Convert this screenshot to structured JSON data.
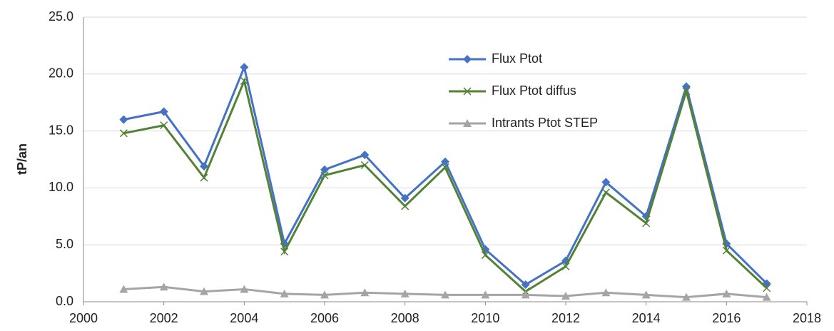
{
  "chart_data": {
    "type": "line",
    "y_label": "tP/an",
    "x": [
      2001,
      2002,
      2003,
      2004,
      2005,
      2006,
      2007,
      2008,
      2009,
      2010,
      2011,
      2012,
      2013,
      2014,
      2015,
      2016,
      2017
    ],
    "series": [
      {
        "name": "Flux Ptot",
        "color": "#4472c4",
        "marker": "diamond",
        "values": [
          16.0,
          16.7,
          11.9,
          20.6,
          5.1,
          11.6,
          12.9,
          9.1,
          12.3,
          4.6,
          1.5,
          3.6,
          10.5,
          7.5,
          18.9,
          5.1,
          1.6
        ]
      },
      {
        "name": "Flux Ptot diffus",
        "color": "#548235",
        "marker": "x",
        "values": [
          14.8,
          15.5,
          10.9,
          19.4,
          4.4,
          11.1,
          12.0,
          8.4,
          11.8,
          4.1,
          0.9,
          3.1,
          9.6,
          6.9,
          18.5,
          4.5,
          1.2
        ]
      },
      {
        "name": "Intrants Ptot STEP",
        "color": "#a5a5a5",
        "marker": "triangle",
        "values": [
          1.1,
          1.3,
          0.9,
          1.1,
          0.7,
          0.6,
          0.8,
          0.7,
          0.6,
          0.6,
          0.6,
          0.5,
          0.8,
          0.6,
          0.4,
          0.7,
          0.4
        ]
      }
    ],
    "xlim": [
      2000,
      2018
    ],
    "xticks": [
      2000,
      2002,
      2004,
      2006,
      2008,
      2010,
      2012,
      2014,
      2016,
      2018
    ],
    "ylim": [
      0,
      25
    ],
    "yticks": [
      {
        "value": 0,
        "label": "0.0"
      },
      {
        "value": 5,
        "label": "5.0"
      },
      {
        "value": 10,
        "label": "10.0"
      },
      {
        "value": 15,
        "label": "15.0"
      },
      {
        "value": 20,
        "label": "20.0"
      },
      {
        "value": 25,
        "label": "25.0"
      }
    ],
    "grid": true,
    "legend": "upper center"
  }
}
